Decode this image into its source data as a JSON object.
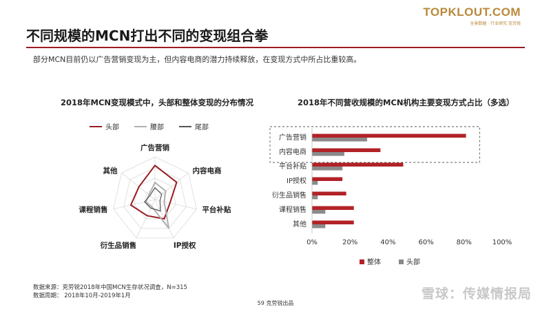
{
  "brand": {
    "logo": "TOPKLOUT.COM",
    "tagline": "全景数据 · 行业研究  克劳锐"
  },
  "title": "不同规模的MCN打出不同的变现组合拳",
  "subtitle": "部分MCN目前仍以广告营销变现为主，但内容电商的潜力持续释放，在变现方式中所占比重较高。",
  "colors": {
    "accent": "#9a1c20",
    "head": "#9a1c20",
    "waist": "#b0b0b0",
    "tail": "#555555",
    "overall": "#b22227",
    "head_bar": "#8a8a8a"
  },
  "chart_data": [
    {
      "type": "radar",
      "title": "2018年MCN变现模式中，头部和整体变现的分布情况",
      "axes": [
        "广告营销",
        "内容电商",
        "平台补贴",
        "IP授权",
        "衍生品销售",
        "课程销售",
        "其他"
      ],
      "series": [
        {
          "name": "头部",
          "values": [
            0.8,
            0.65,
            0.36,
            0.5,
            0.42,
            0.58,
            0.48
          ]
        },
        {
          "name": "腰部",
          "values": [
            0.4,
            0.32,
            0.22,
            0.75,
            0.18,
            0.22,
            0.18
          ]
        },
        {
          "name": "尾部",
          "values": [
            0.28,
            0.2,
            0.12,
            0.3,
            0.22,
            0.25,
            0.15
          ]
        }
      ]
    },
    {
      "type": "bar",
      "orientation": "horizontal",
      "title": "2018年不同营收规模的MCN机构主要变现方式占比（多选）",
      "categories": [
        "广告营销",
        "内容电商",
        "平台补贴",
        "IP授权",
        "衍生品销售",
        "课程销售",
        "其他"
      ],
      "xlim": [
        0,
        100
      ],
      "ticks": [
        "0%",
        "20%",
        "40%",
        "60%",
        "80%",
        "100%"
      ],
      "series": [
        {
          "name": "整体",
          "values": [
            81,
            36,
            48,
            16,
            18,
            22,
            22
          ]
        },
        {
          "name": "头部",
          "values": [
            29,
            17,
            16,
            3,
            3,
            7,
            7
          ]
        }
      ]
    }
  ],
  "source": {
    "line1": "数据来源：克劳锐2018年中国MCN生存状况调查，N=315",
    "line2": "数据周期：  2018年10月-2019年1月"
  },
  "footer": "59 克劳锐出品",
  "watermark": "雪球：传媒情报局"
}
